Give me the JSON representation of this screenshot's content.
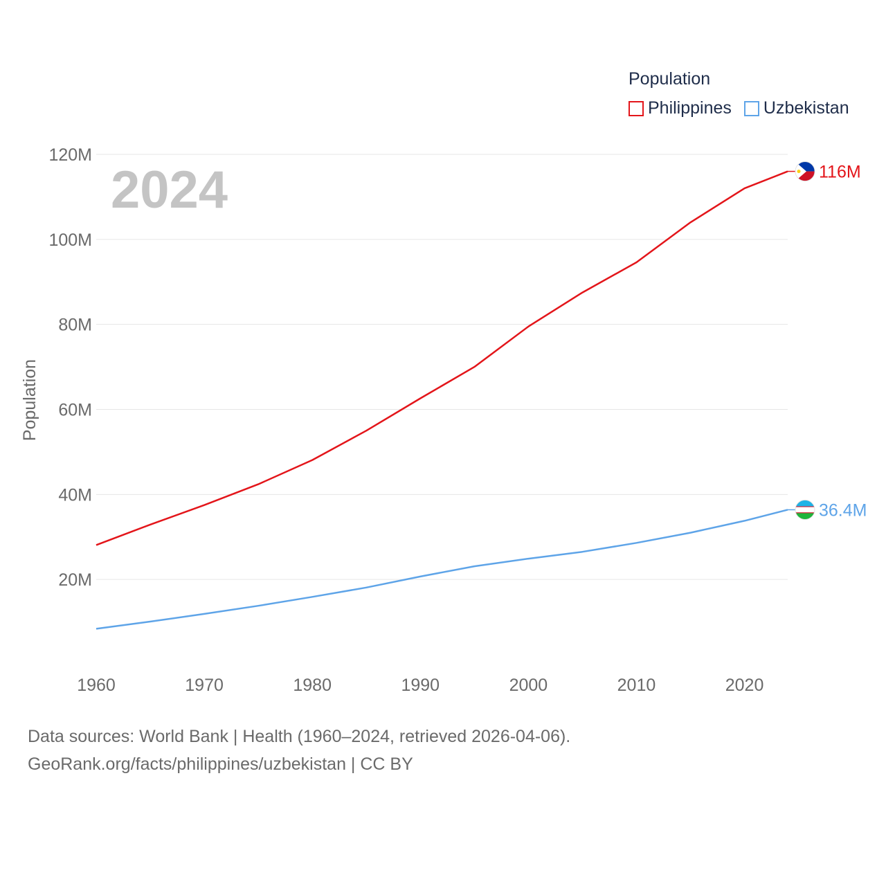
{
  "legend": {
    "title": "Population",
    "items": [
      {
        "label": "Philippines",
        "color": "#e3151a"
      },
      {
        "label": "Uzbekistan",
        "color": "#5ea4e8"
      }
    ]
  },
  "footer": {
    "line1": "Data sources: World Bank | Health (1960–2024, retrieved 2026-04-06).",
    "line2": "GeoRank.org/facts/philippines/uzbekistan | CC BY"
  },
  "chart_data": {
    "type": "line",
    "title": "Population",
    "year_label": "2024",
    "xlabel": "",
    "ylabel": "Population",
    "xlim": [
      1960,
      2024
    ],
    "ylim": [
      0,
      120000000
    ],
    "x_ticks": [
      1960,
      1970,
      1980,
      1990,
      2000,
      2010,
      2020
    ],
    "y_ticks": [
      20000000,
      40000000,
      60000000,
      80000000,
      100000000,
      120000000
    ],
    "y_tick_labels": [
      "20M",
      "40M",
      "60M",
      "80M",
      "100M",
      "120M"
    ],
    "grid": true,
    "legend_position": "top-right",
    "series": [
      {
        "name": "Philippines",
        "color": "#e3151a",
        "end_label": "116M",
        "x": [
          1960,
          1965,
          1970,
          1975,
          1980,
          1985,
          1990,
          1995,
          2000,
          2005,
          2010,
          2015,
          2020,
          2024
        ],
        "values": [
          28100000,
          32900000,
          37500000,
          42400000,
          48100000,
          55000000,
          62600000,
          70000000,
          79500000,
          87500000,
          94600000,
          104000000,
          112000000,
          116000000
        ]
      },
      {
        "name": "Uzbekistan",
        "color": "#5ea4e8",
        "end_label": "36.4M",
        "x": [
          1960,
          1965,
          1970,
          1975,
          1980,
          1985,
          1990,
          1995,
          2000,
          2005,
          2010,
          2015,
          2020,
          2024
        ],
        "values": [
          8400000,
          10100000,
          11900000,
          13800000,
          15900000,
          18100000,
          20700000,
          23100000,
          24900000,
          26500000,
          28600000,
          31000000,
          33800000,
          36400000
        ]
      }
    ]
  }
}
